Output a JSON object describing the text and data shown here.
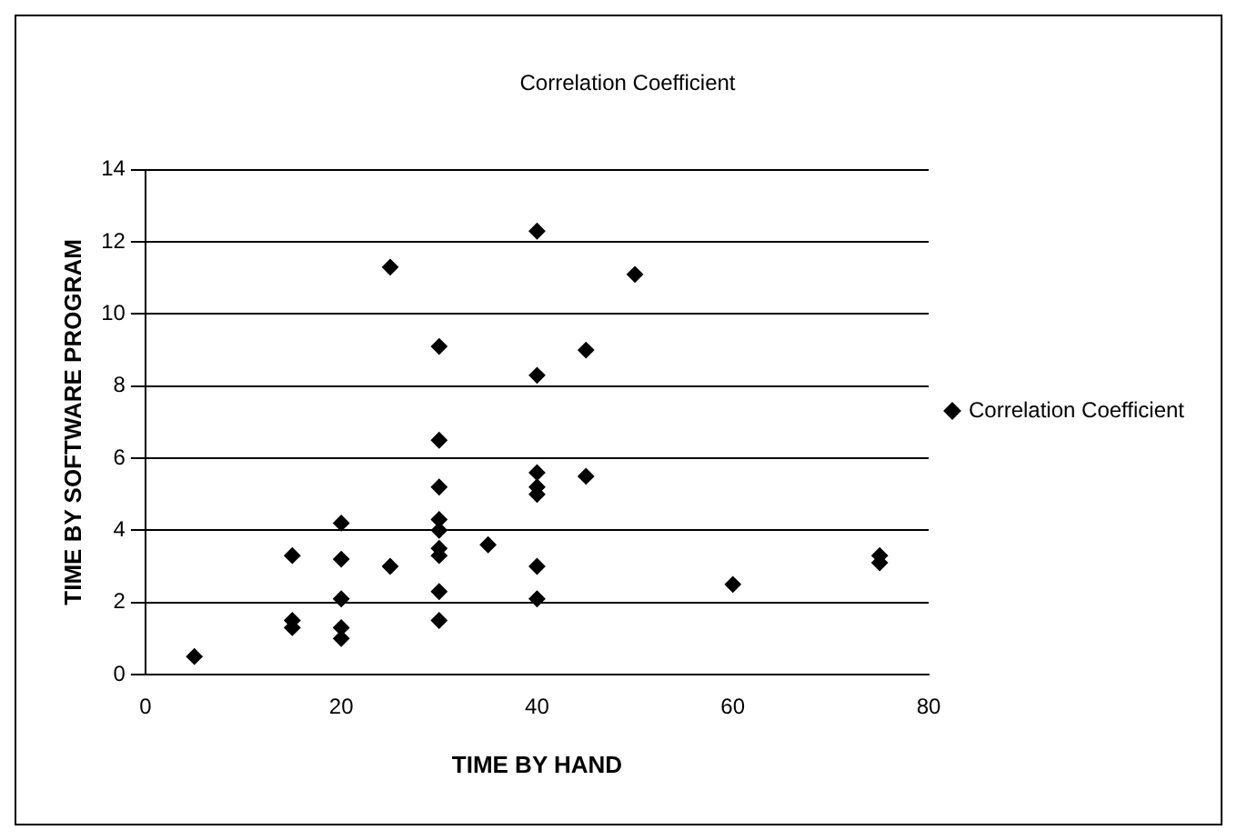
{
  "chart_data": {
    "type": "scatter",
    "title": "Correlation Coefficient",
    "xlabel": "TIME BY HAND",
    "ylabel": "TIME BY SOFTWARE PROGRAM",
    "series": [
      {
        "name": "Correlation Coefficient",
        "color": "#000000",
        "x": [
          5,
          15,
          15,
          15,
          20,
          20,
          20,
          20,
          20,
          25,
          25,
          30,
          30,
          30,
          30,
          30,
          30,
          30,
          30,
          30,
          35,
          40,
          40,
          40,
          40,
          40,
          40,
          40,
          45,
          45,
          50,
          60,
          75,
          75
        ],
        "values": [
          0.5,
          1.3,
          1.5,
          3.3,
          1.0,
          1.3,
          2.1,
          3.2,
          4.2,
          3.0,
          11.3,
          1.5,
          2.3,
          3.3,
          3.5,
          4.0,
          4.3,
          5.2,
          6.5,
          9.1,
          3.6,
          2.1,
          3.0,
          5.0,
          5.2,
          5.6,
          8.3,
          12.3,
          5.5,
          9.0,
          11.1,
          2.5,
          3.1,
          3.3
        ]
      }
    ],
    "xlim": [
      0,
      80
    ],
    "xticks": [
      0,
      20,
      40,
      60,
      80
    ],
    "ylim": [
      0,
      14
    ],
    "yticks": [
      0,
      2,
      4,
      6,
      8,
      10,
      12,
      14
    ],
    "grid": "y",
    "legend": "right",
    "marker": "diamond"
  }
}
